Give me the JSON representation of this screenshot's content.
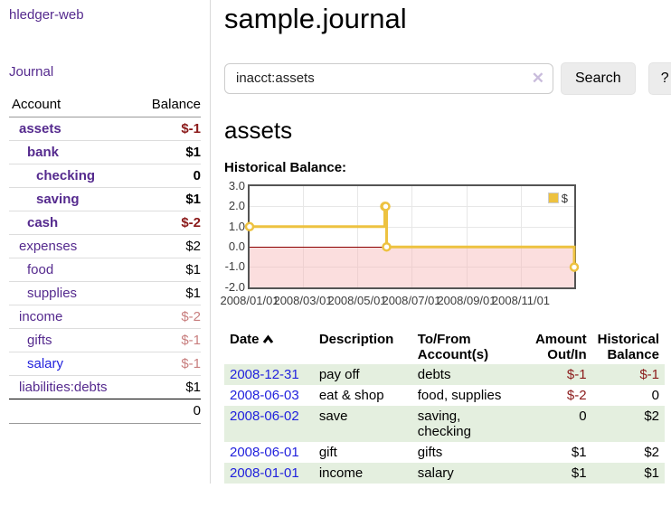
{
  "app": {
    "brand": "hledger-web",
    "nav_journal": "Journal"
  },
  "header": {
    "title": "sample.journal"
  },
  "search": {
    "value": "inacct:assets",
    "clear_icon": "x",
    "button_label": "Search",
    "help_label": "?"
  },
  "sidebar": {
    "columns": {
      "account": "Account",
      "balance": "Balance"
    },
    "accounts": [
      {
        "name": "assets",
        "balance": "$-1",
        "level": 1,
        "emphasized": true,
        "negative": "strong"
      },
      {
        "name": "bank",
        "balance": "$1",
        "level": 2,
        "emphasized": true
      },
      {
        "name": "checking",
        "balance": "0",
        "level": 3,
        "emphasized": true
      },
      {
        "name": "saving",
        "balance": "$1",
        "level": 3,
        "emphasized": true
      },
      {
        "name": "cash",
        "balance": "$-2",
        "level": 2,
        "emphasized": true,
        "negative": "strong"
      },
      {
        "name": "expenses",
        "balance": "$2",
        "level": 1
      },
      {
        "name": "food",
        "balance": "$1",
        "level": 2
      },
      {
        "name": "supplies",
        "balance": "$1",
        "level": 2
      },
      {
        "name": "income",
        "balance": "$-2",
        "level": 1,
        "negative": "soft"
      },
      {
        "name": "gifts",
        "balance": "$-1",
        "level": 2,
        "negative": "soft"
      },
      {
        "name": "salary",
        "balance": "$-1",
        "level": 2,
        "negative": "soft"
      },
      {
        "name": "liabilities:debts",
        "balance": "$1",
        "level": 1
      }
    ],
    "total": "0"
  },
  "account_page": {
    "heading": "assets",
    "chart_title": "Historical Balance:"
  },
  "chart_data": {
    "type": "line",
    "title": "Historical Balance",
    "step": true,
    "series": [
      {
        "name": "$",
        "color": "#edc240",
        "points": [
          [
            "2008-01-01",
            1
          ],
          [
            "2008-06-01",
            2
          ],
          [
            "2008-06-02",
            2
          ],
          [
            "2008-06-03",
            0
          ],
          [
            "2008-12-31",
            -1
          ]
        ]
      }
    ],
    "xlim": [
      "2008-01-01",
      "2008-12-31"
    ],
    "ylim": [
      -2,
      3
    ],
    "x_ticks": [
      "2008/01/01",
      "2008/03/01",
      "2008/05/01",
      "2008/07/01",
      "2008/09/01",
      "2008/11/01"
    ],
    "y_ticks": [
      3.0,
      2.0,
      1.0,
      0.0,
      -1.0,
      -2.0
    ],
    "grid": true,
    "legend_position": "top-right",
    "zero_line_color": "#8b0000",
    "negative_region_color": "rgba(246,182,182,0.45)"
  },
  "register": {
    "columns": [
      {
        "l1": "Date",
        "l2": ""
      },
      {
        "l1": "Description",
        "l2": ""
      },
      {
        "l1": "To/From",
        "l2": "Account(s)"
      },
      {
        "l1": "Amount",
        "l2": "Out/In"
      },
      {
        "l1": "Historical",
        "l2": "Balance"
      }
    ],
    "sort": {
      "column": "Date",
      "direction": "ascending"
    },
    "rows": [
      {
        "date": "2008-12-31",
        "description": "pay off",
        "accounts": "debts",
        "amount": "$-1",
        "balance": "$-1"
      },
      {
        "date": "2008-06-03",
        "description": "eat & shop",
        "accounts": "food, supplies",
        "amount": "$-2",
        "balance": "0"
      },
      {
        "date": "2008-06-02",
        "description": "save",
        "accounts": "saving,\nchecking",
        "amount": "0",
        "balance": "$2"
      },
      {
        "date": "2008-06-01",
        "description": "gift",
        "accounts": "gifts",
        "amount": "$1",
        "balance": "$2"
      },
      {
        "date": "2008-01-01",
        "description": "income",
        "accounts": "salary",
        "amount": "$1",
        "balance": "$1"
      }
    ]
  },
  "colors": {
    "link_purple": "#552a8e",
    "link_blue": "#2222dd",
    "negative_strong": "#8b1a1a",
    "negative_soft": "#c87e7e",
    "row_stripe_green": "#e4efdf",
    "chart_line": "#edc240"
  }
}
